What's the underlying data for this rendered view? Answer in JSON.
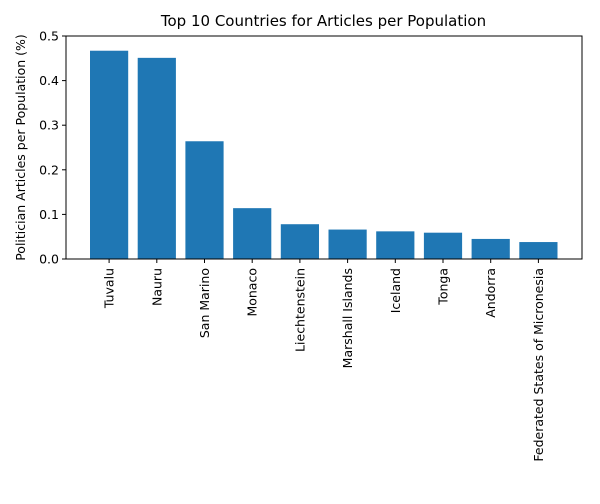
{
  "chart_data": {
    "type": "bar",
    "title": "Top 10 Countries for Articles per Population",
    "xlabel": "",
    "ylabel": "Politician Articles per Population (%)",
    "categories": [
      "Tuvalu",
      "Nauru",
      "San Marino",
      "Monaco",
      "Liechtenstein",
      "Marshall Islands",
      "Iceland",
      "Tonga",
      "Andorra",
      "Federated States of Micronesia"
    ],
    "values": [
      0.467,
      0.451,
      0.264,
      0.114,
      0.078,
      0.066,
      0.062,
      0.059,
      0.045,
      0.038
    ],
    "ylim": [
      0,
      0.5
    ],
    "yticks": [
      0.0,
      0.1,
      0.2,
      0.3,
      0.4,
      0.5
    ],
    "ytick_labels": [
      "0.0",
      "0.1",
      "0.2",
      "0.3",
      "0.4",
      "0.5"
    ],
    "grid": false,
    "bar_color": "#1f77b4"
  }
}
